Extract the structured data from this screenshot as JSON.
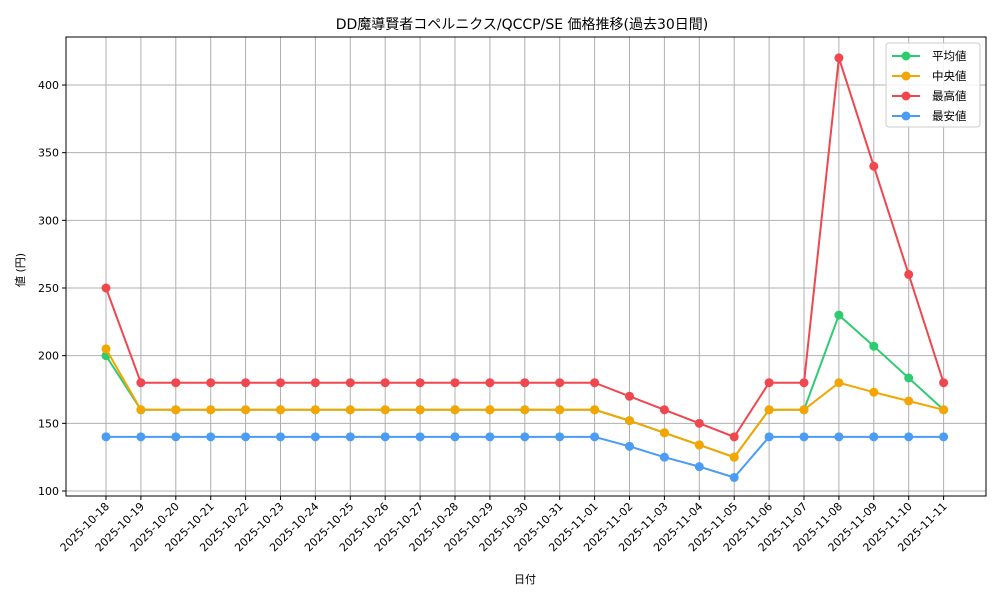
{
  "chart_data": {
    "type": "line",
    "title": "DD魔導賢者コペルニクス/QCCP/SE 価格推移(過去30日間)",
    "xlabel": "日付",
    "ylabel": "値 (円)",
    "ylim": [
      95,
      435
    ],
    "yticks": [
      100,
      150,
      200,
      250,
      300,
      350,
      400
    ],
    "grid": true,
    "legend_position": "upper right",
    "x": [
      "2025-10-18",
      "2025-10-19",
      "2025-10-20",
      "2025-10-21",
      "2025-10-22",
      "2025-10-23",
      "2025-10-24",
      "2025-10-25",
      "2025-10-26",
      "2025-10-27",
      "2025-10-28",
      "2025-10-29",
      "2025-10-30",
      "2025-10-31",
      "2025-11-01",
      "2025-11-02",
      "2025-11-03",
      "2025-11-04",
      "2025-11-05",
      "2025-11-06",
      "2025-11-07",
      "2025-11-08",
      "2025-11-09",
      "2025-11-10",
      "2025-11-11"
    ],
    "series": [
      {
        "name": "平均値",
        "color": "#2ecc71",
        "values": [
          200,
          160,
          160,
          160,
          160,
          160,
          160,
          160,
          160,
          160,
          160,
          160,
          160,
          160,
          160,
          152,
          143,
          134,
          125,
          160,
          160,
          230,
          207,
          183.5,
          160
        ]
      },
      {
        "name": "中央値",
        "color": "#f5a500",
        "values": [
          205,
          160,
          160,
          160,
          160,
          160,
          160,
          160,
          160,
          160,
          160,
          160,
          160,
          160,
          160,
          152,
          143,
          134,
          125,
          160,
          160,
          180,
          173,
          166.5,
          160
        ]
      },
      {
        "name": "最高値",
        "color": "#f0474f",
        "values": [
          250,
          180,
          180,
          180,
          180,
          180,
          180,
          180,
          180,
          180,
          180,
          180,
          180,
          180,
          180,
          170,
          160,
          150,
          140,
          180,
          180,
          420,
          340,
          260,
          180
        ]
      },
      {
        "name": "最安値",
        "color": "#4a9cf5",
        "values": [
          140,
          140,
          140,
          140,
          140,
          140,
          140,
          140,
          140,
          140,
          140,
          140,
          140,
          140,
          140,
          133,
          125,
          118,
          110,
          140,
          140,
          140,
          140,
          140,
          140
        ]
      }
    ]
  }
}
